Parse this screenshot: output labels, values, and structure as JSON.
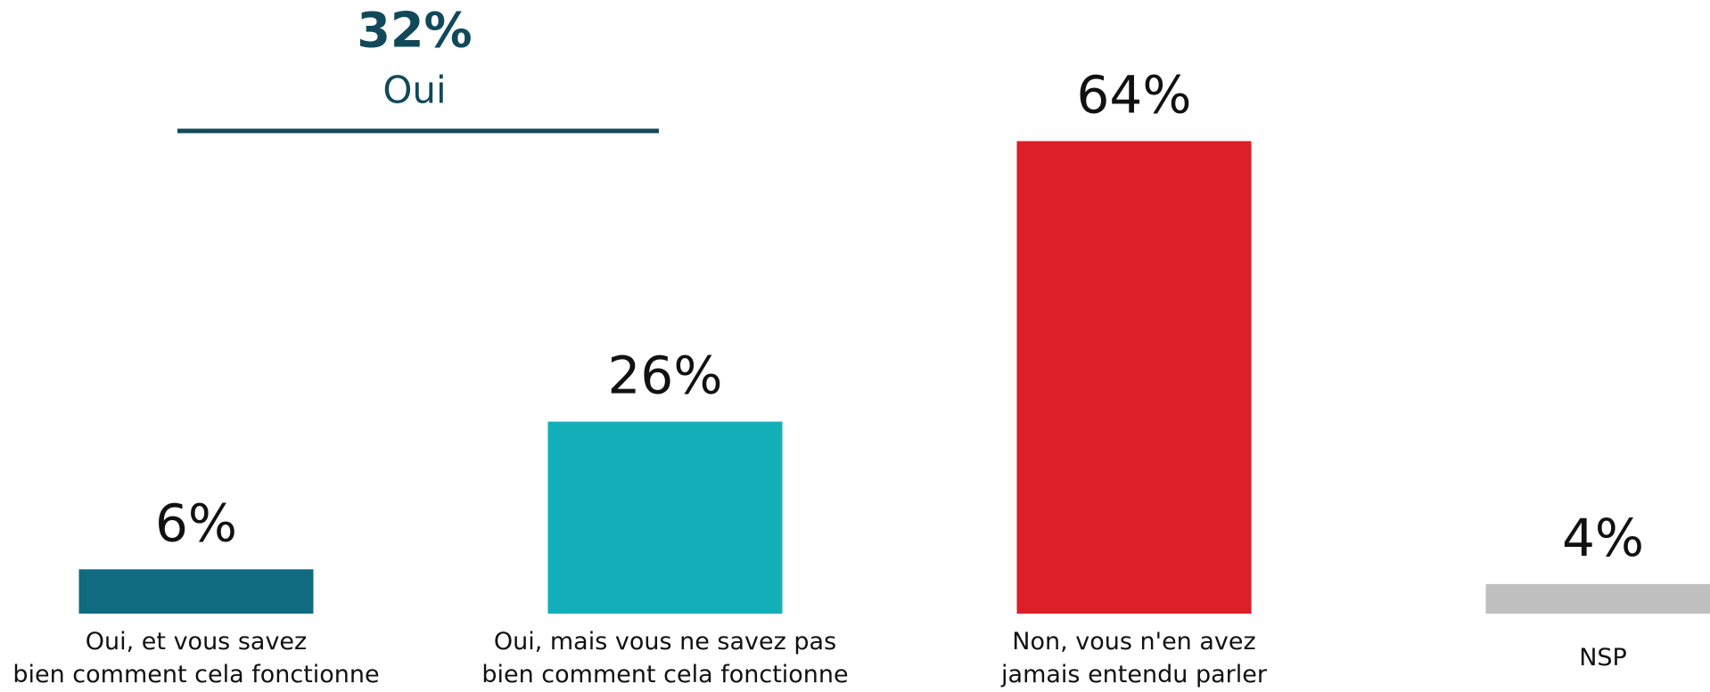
{
  "chart_data": {
    "type": "bar",
    "categories": [
      "Oui, et vous savez\nbien comment cela fonctionne",
      "Oui, mais vous ne savez pas\nbien comment cela fonctionne",
      "Non, vous n'en avez\njamais entendu parler",
      "NSP"
    ],
    "values": [
      6,
      26,
      64,
      4
    ],
    "value_labels": [
      "6%",
      "26%",
      "64%",
      "4%"
    ],
    "colors": [
      "#106b80",
      "#13afb8",
      "#dd1f27",
      "#bfbfbf"
    ],
    "group": {
      "value": 32,
      "value_label": "32%",
      "label": "Oui",
      "color": "#11495a"
    }
  }
}
